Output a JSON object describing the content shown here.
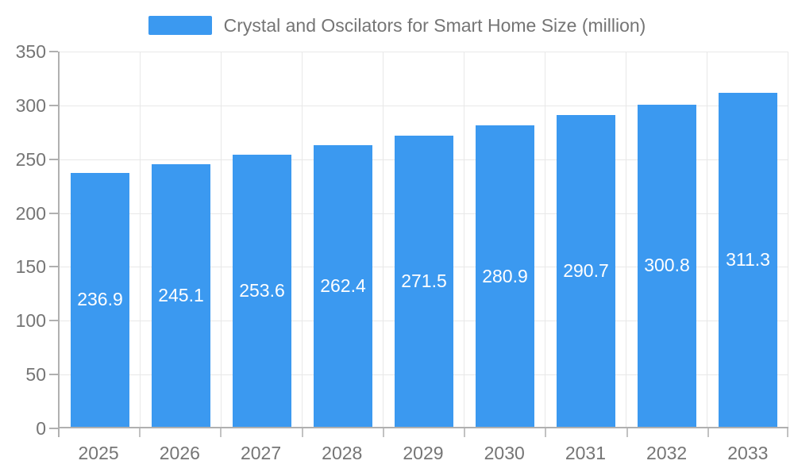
{
  "chart_data": {
    "type": "bar",
    "title": "Crystal and Oscilators for Smart Home Size (million)",
    "categories": [
      "2025",
      "2026",
      "2027",
      "2028",
      "2029",
      "2030",
      "2031",
      "2032",
      "2033"
    ],
    "values": [
      236.9,
      245.1,
      253.6,
      262.4,
      271.5,
      280.9,
      290.7,
      300.8,
      311.3
    ],
    "value_labels": [
      "236.9",
      "245.1",
      "253.6",
      "262.4",
      "271.5",
      "280.9",
      "290.7",
      "300.8",
      "311.3"
    ],
    "xlabel": "",
    "ylabel": "",
    "ylim": [
      0,
      350
    ],
    "yticks": [
      0,
      50,
      100,
      150,
      200,
      250,
      300,
      350
    ],
    "grid": true,
    "legend_position": "top",
    "colors": {
      "bar": "#3B99F0",
      "bar_label": "#FFFFFF",
      "axis_text": "#757575",
      "grid_line": "#E8E8E8",
      "axis_line": "#B0B0B0",
      "tick": "#C2C2C2",
      "background": "#FFFFFF"
    }
  }
}
